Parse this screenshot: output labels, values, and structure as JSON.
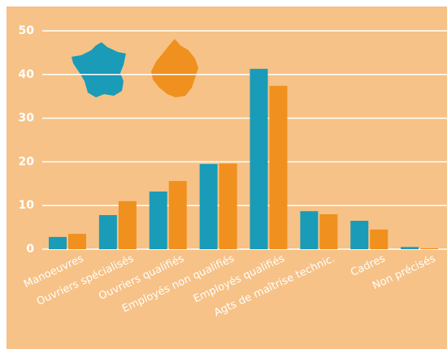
{
  "chart_data": {
    "type": "bar",
    "categories": [
      "Manoeuvres",
      "Ouvriers spécialisés",
      "Ouvriers qualifiés",
      "Employés non qualifiés",
      "Employés qualifiés",
      "Agts de maîtrise technic.",
      "Cadres",
      "Non précisés"
    ],
    "series": [
      {
        "color": "#1a9bb8",
        "values": [
          2.8,
          7.8,
          13.2,
          19.5,
          41.3,
          8.7,
          6.5,
          0.5
        ]
      },
      {
        "color": "#f0901e",
        "values": [
          3.5,
          11,
          15.6,
          19.6,
          37.4,
          8,
          4.5,
          0.2
        ]
      }
    ],
    "ylim": [
      0,
      50
    ],
    "yticks": [
      0,
      10,
      20,
      30,
      40,
      50
    ],
    "grid": true
  }
}
